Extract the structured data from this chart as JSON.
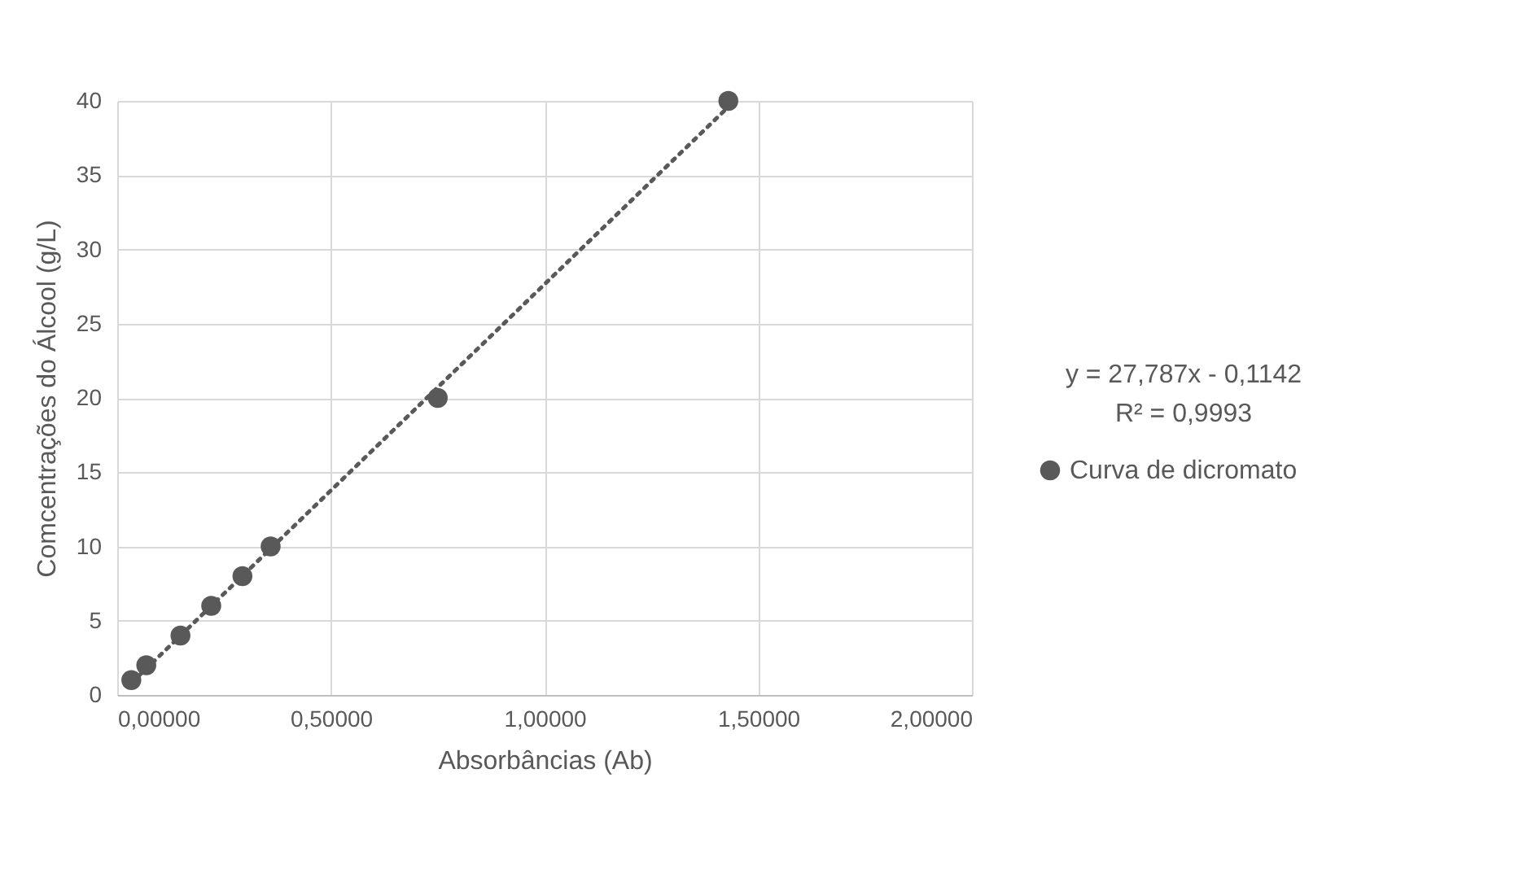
{
  "chart_data": {
    "type": "scatter",
    "xlabel": "Absorbâncias (Ab)",
    "ylabel": "Comcentrações do Álcool (g/L)",
    "series": [
      {
        "name": "Curva de dicromato",
        "color": "#595959",
        "marker": "circle",
        "x": [
          0.033,
          0.068,
          0.148,
          0.22,
          0.293,
          0.359,
          0.75,
          1.43
        ],
        "values": [
          1,
          2,
          4,
          6,
          8,
          10,
          20,
          40
        ]
      },
      {
        "type": "line",
        "color": "#595959",
        "line_style": "dotted",
        "marker": "none",
        "x": [
          0.033,
          1.43
        ],
        "values": [
          0.8,
          39.6
        ]
      }
    ],
    "xlim": [
      0,
      2
    ],
    "xticks": [
      {
        "value": 0,
        "label": "0,00000"
      },
      {
        "value": 0.5,
        "label": "0,50000"
      },
      {
        "value": 1,
        "label": "1,00000"
      },
      {
        "value": 1.5,
        "label": "1,50000"
      },
      {
        "value": 2,
        "label": "2,00000"
      }
    ],
    "ylim": [
      0,
      40
    ],
    "yticks": [
      0,
      5,
      10,
      15,
      20,
      25,
      30,
      35,
      40
    ],
    "grid": true,
    "legend": "right",
    "annotations": [
      "y = 27,787x - 0,1142",
      "R² = 0,9993"
    ]
  }
}
